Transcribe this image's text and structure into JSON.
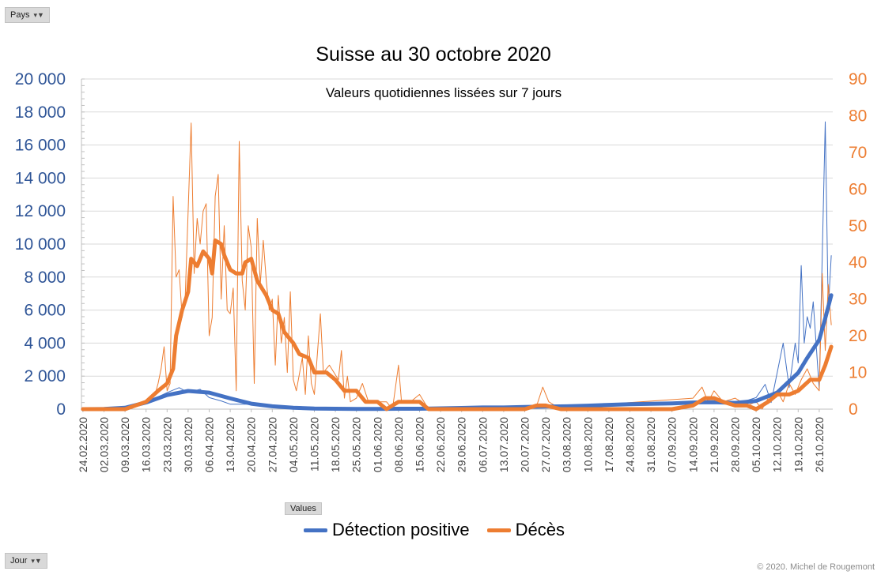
{
  "filters": {
    "country_label": "Pays",
    "day_label": "Jour",
    "values_label": "Values"
  },
  "footer": {
    "copyright": "© 2020.  Michel de Rougemont"
  },
  "colors": {
    "positive": "#4472c4",
    "deaths": "#ed7d31",
    "left_axis": "#2f5597",
    "right_axis": "#ed7d31"
  },
  "chart_data": {
    "type": "line",
    "title": "Suisse au 30 octobre 2020",
    "subtitle": "Valeurs quotidiennes lissées sur 7 jours",
    "grid": true,
    "legend_position": "bottom",
    "x_start": "2020-02-24",
    "x_tick_labels": [
      "24.02.2020",
      "02.03.2020",
      "09.03.2020",
      "16.03.2020",
      "23.03.2020",
      "30.03.2020",
      "06.04.2020",
      "13.04.2020",
      "20.04.2020",
      "27.04.2020",
      "04.05.2020",
      "11.05.2020",
      "18.05.2020",
      "25.05.2020",
      "01.06.2020",
      "08.06.2020",
      "15.06.2020",
      "22.06.2020",
      "29.06.2020",
      "06.07.2020",
      "13.07.2020",
      "20.07.2020",
      "27.07.2020",
      "03.08.2020",
      "10.08.2020",
      "17.08.2020",
      "24.08.2020",
      "31.08.2020",
      "07.09.2020",
      "14.09.2020",
      "21.09.2020",
      "28.09.2020",
      "05.10.2020",
      "12.10.2020",
      "19.10.2020",
      "26.10.2020"
    ],
    "y_left": {
      "ylim": [
        0,
        20000
      ],
      "ticks": [
        "0",
        "2 000",
        "4 000",
        "6 000",
        "8 000",
        "10 000",
        "12 000",
        "14 000",
        "16 000",
        "18 000",
        "20 000"
      ]
    },
    "y_right": {
      "ylim": [
        0,
        90
      ],
      "ticks": [
        "0",
        "10",
        "20",
        "30",
        "40",
        "50",
        "60",
        "70",
        "80",
        "90"
      ]
    },
    "series": [
      {
        "name": "Détection positive",
        "axis": "left",
        "kind": "smoothed",
        "points": [
          [
            "2020-02-24",
            0
          ],
          [
            "2020-03-02",
            10
          ],
          [
            "2020-03-09",
            80
          ],
          [
            "2020-03-16",
            400
          ],
          [
            "2020-03-23",
            850
          ],
          [
            "2020-03-30",
            1100
          ],
          [
            "2020-04-06",
            1000
          ],
          [
            "2020-04-13",
            650
          ],
          [
            "2020-04-20",
            330
          ],
          [
            "2020-04-27",
            170
          ],
          [
            "2020-05-04",
            80
          ],
          [
            "2020-05-11",
            40
          ],
          [
            "2020-05-18",
            25
          ],
          [
            "2020-05-25",
            15
          ],
          [
            "2020-06-01",
            15
          ],
          [
            "2020-06-08",
            25
          ],
          [
            "2020-06-15",
            25
          ],
          [
            "2020-06-22",
            50
          ],
          [
            "2020-06-29",
            70
          ],
          [
            "2020-07-06",
            100
          ],
          [
            "2020-07-13",
            100
          ],
          [
            "2020-07-20",
            130
          ],
          [
            "2020-07-27",
            160
          ],
          [
            "2020-08-03",
            170
          ],
          [
            "2020-08-10",
            210
          ],
          [
            "2020-08-17",
            260
          ],
          [
            "2020-08-24",
            300
          ],
          [
            "2020-08-31",
            320
          ],
          [
            "2020-09-07",
            350
          ],
          [
            "2020-09-14",
            400
          ],
          [
            "2020-09-21",
            420
          ],
          [
            "2020-09-28",
            380
          ],
          [
            "2020-10-05",
            500
          ],
          [
            "2020-10-12",
            1000
          ],
          [
            "2020-10-19",
            2200
          ],
          [
            "2020-10-22",
            3100
          ],
          [
            "2020-10-26",
            4200
          ],
          [
            "2020-10-28",
            5500
          ],
          [
            "2020-10-30",
            6900
          ]
        ]
      },
      {
        "name": "Détection positive",
        "axis": "left",
        "kind": "daily",
        "points": [
          [
            "2020-02-24",
            0
          ],
          [
            "2020-03-09",
            100
          ],
          [
            "2020-03-16",
            400
          ],
          [
            "2020-03-23",
            1000
          ],
          [
            "2020-03-27",
            1300
          ],
          [
            "2020-03-30",
            1000
          ],
          [
            "2020-04-03",
            1200
          ],
          [
            "2020-04-06",
            700
          ],
          [
            "2020-04-10",
            500
          ],
          [
            "2020-04-13",
            300
          ],
          [
            "2020-04-20",
            300
          ],
          [
            "2020-04-27",
            150
          ],
          [
            "2020-05-04",
            80
          ],
          [
            "2020-05-11",
            40
          ],
          [
            "2020-06-01",
            20
          ],
          [
            "2020-07-06",
            100
          ],
          [
            "2020-08-10",
            200
          ],
          [
            "2020-09-14",
            400
          ],
          [
            "2020-09-21",
            500
          ],
          [
            "2020-09-28",
            300
          ],
          [
            "2020-10-05",
            700
          ],
          [
            "2020-10-08",
            1500
          ],
          [
            "2020-10-10",
            400
          ],
          [
            "2020-10-12",
            2200
          ],
          [
            "2020-10-14",
            4000
          ],
          [
            "2020-10-16",
            1300
          ],
          [
            "2020-10-18",
            4000
          ],
          [
            "2020-10-19",
            2800
          ],
          [
            "2020-10-20",
            8700
          ],
          [
            "2020-10-21",
            4000
          ],
          [
            "2020-10-22",
            5600
          ],
          [
            "2020-10-23",
            4900
          ],
          [
            "2020-10-24",
            6500
          ],
          [
            "2020-10-26",
            1200
          ],
          [
            "2020-10-28",
            17400
          ],
          [
            "2020-10-29",
            6000
          ],
          [
            "2020-10-30",
            9300
          ]
        ]
      },
      {
        "name": "Décès",
        "axis": "right",
        "kind": "smoothed",
        "points": [
          [
            "2020-02-24",
            0
          ],
          [
            "2020-03-02",
            0
          ],
          [
            "2020-03-09",
            0
          ],
          [
            "2020-03-16",
            2
          ],
          [
            "2020-03-20",
            5
          ],
          [
            "2020-03-23",
            7
          ],
          [
            "2020-03-25",
            11
          ],
          [
            "2020-03-26",
            20
          ],
          [
            "2020-03-28",
            27
          ],
          [
            "2020-03-30",
            32
          ],
          [
            "2020-03-31",
            41
          ],
          [
            "2020-04-02",
            39
          ],
          [
            "2020-04-04",
            43
          ],
          [
            "2020-04-06",
            41
          ],
          [
            "2020-04-07",
            37
          ],
          [
            "2020-04-08",
            46
          ],
          [
            "2020-04-10",
            45
          ],
          [
            "2020-04-11",
            42
          ],
          [
            "2020-04-13",
            38
          ],
          [
            "2020-04-15",
            37
          ],
          [
            "2020-04-17",
            37
          ],
          [
            "2020-04-18",
            40
          ],
          [
            "2020-04-20",
            41
          ],
          [
            "2020-04-22",
            35
          ],
          [
            "2020-04-25",
            31
          ],
          [
            "2020-04-27",
            27
          ],
          [
            "2020-04-29",
            26
          ],
          [
            "2020-05-01",
            21
          ],
          [
            "2020-05-04",
            18
          ],
          [
            "2020-05-06",
            15
          ],
          [
            "2020-05-09",
            14
          ],
          [
            "2020-05-11",
            10
          ],
          [
            "2020-05-15",
            10
          ],
          [
            "2020-05-18",
            8
          ],
          [
            "2020-05-21",
            5
          ],
          [
            "2020-05-25",
            5
          ],
          [
            "2020-05-28",
            2
          ],
          [
            "2020-06-01",
            2
          ],
          [
            "2020-06-04",
            0
          ],
          [
            "2020-06-08",
            2
          ],
          [
            "2020-06-15",
            2
          ],
          [
            "2020-06-18",
            0
          ],
          [
            "2020-07-20",
            0
          ],
          [
            "2020-07-24",
            1
          ],
          [
            "2020-07-27",
            1
          ],
          [
            "2020-08-01",
            0
          ],
          [
            "2020-08-10",
            0
          ],
          [
            "2020-08-17",
            0
          ],
          [
            "2020-09-07",
            0
          ],
          [
            "2020-09-14",
            1
          ],
          [
            "2020-09-18",
            3
          ],
          [
            "2020-09-21",
            3
          ],
          [
            "2020-09-24",
            2
          ],
          [
            "2020-09-28",
            1
          ],
          [
            "2020-10-02",
            1
          ],
          [
            "2020-10-05",
            0
          ],
          [
            "2020-10-09",
            2
          ],
          [
            "2020-10-12",
            4
          ],
          [
            "2020-10-16",
            4
          ],
          [
            "2020-10-19",
            5
          ],
          [
            "2020-10-23",
            8
          ],
          [
            "2020-10-26",
            8
          ],
          [
            "2020-10-28",
            12
          ],
          [
            "2020-10-30",
            17
          ]
        ]
      },
      {
        "name": "Décès",
        "axis": "right",
        "kind": "daily",
        "points": [
          [
            "2020-02-24",
            0
          ],
          [
            "2020-03-09",
            0
          ],
          [
            "2020-03-16",
            2
          ],
          [
            "2020-03-19",
            4
          ],
          [
            "2020-03-20",
            7
          ],
          [
            "2020-03-21",
            11
          ],
          [
            "2020-03-22",
            17
          ],
          [
            "2020-03-23",
            5
          ],
          [
            "2020-03-24",
            7
          ],
          [
            "2020-03-25",
            58
          ],
          [
            "2020-03-26",
            36
          ],
          [
            "2020-03-27",
            38
          ],
          [
            "2020-03-28",
            25
          ],
          [
            "2020-03-29",
            30
          ],
          [
            "2020-03-31",
            78
          ],
          [
            "2020-04-01",
            37
          ],
          [
            "2020-04-02",
            52
          ],
          [
            "2020-04-03",
            45
          ],
          [
            "2020-04-04",
            54
          ],
          [
            "2020-04-05",
            56
          ],
          [
            "2020-04-06",
            20
          ],
          [
            "2020-04-07",
            25
          ],
          [
            "2020-04-08",
            58
          ],
          [
            "2020-04-09",
            64
          ],
          [
            "2020-04-10",
            30
          ],
          [
            "2020-04-11",
            50
          ],
          [
            "2020-04-12",
            27
          ],
          [
            "2020-04-13",
            26
          ],
          [
            "2020-04-14",
            33
          ],
          [
            "2020-04-15",
            5
          ],
          [
            "2020-04-16",
            73
          ],
          [
            "2020-04-17",
            35
          ],
          [
            "2020-04-18",
            27
          ],
          [
            "2020-04-19",
            50
          ],
          [
            "2020-04-20",
            44
          ],
          [
            "2020-04-21",
            7
          ],
          [
            "2020-04-22",
            52
          ],
          [
            "2020-04-23",
            34
          ],
          [
            "2020-04-24",
            46
          ],
          [
            "2020-04-25",
            35
          ],
          [
            "2020-04-26",
            27
          ],
          [
            "2020-04-27",
            30
          ],
          [
            "2020-04-28",
            12
          ],
          [
            "2020-04-29",
            31
          ],
          [
            "2020-04-30",
            18
          ],
          [
            "2020-05-01",
            25
          ],
          [
            "2020-05-02",
            10
          ],
          [
            "2020-05-03",
            32
          ],
          [
            "2020-05-04",
            8
          ],
          [
            "2020-05-05",
            5
          ],
          [
            "2020-05-07",
            14
          ],
          [
            "2020-05-08",
            4
          ],
          [
            "2020-05-09",
            20
          ],
          [
            "2020-05-10",
            7
          ],
          [
            "2020-05-11",
            4
          ],
          [
            "2020-05-13",
            26
          ],
          [
            "2020-05-14",
            10
          ],
          [
            "2020-05-16",
            12
          ],
          [
            "2020-05-19",
            8
          ],
          [
            "2020-05-20",
            16
          ],
          [
            "2020-05-21",
            3
          ],
          [
            "2020-05-22",
            9
          ],
          [
            "2020-05-23",
            2
          ],
          [
            "2020-05-25",
            3
          ],
          [
            "2020-05-27",
            7
          ],
          [
            "2020-05-29",
            2
          ],
          [
            "2020-06-01",
            2
          ],
          [
            "2020-06-04",
            2
          ],
          [
            "2020-06-06",
            0
          ],
          [
            "2020-06-08",
            12
          ],
          [
            "2020-06-09",
            2
          ],
          [
            "2020-06-12",
            2
          ],
          [
            "2020-06-15",
            4
          ],
          [
            "2020-06-18",
            0
          ],
          [
            "2020-07-24",
            1
          ],
          [
            "2020-07-26",
            6
          ],
          [
            "2020-07-28",
            2
          ],
          [
            "2020-08-01",
            0
          ],
          [
            "2020-08-10",
            1
          ],
          [
            "2020-09-14",
            3
          ],
          [
            "2020-09-17",
            6
          ],
          [
            "2020-09-19",
            2
          ],
          [
            "2020-09-21",
            5
          ],
          [
            "2020-09-24",
            2
          ],
          [
            "2020-09-28",
            3
          ],
          [
            "2020-10-02",
            1
          ],
          [
            "2020-10-05",
            2
          ],
          [
            "2020-10-07",
            0
          ],
          [
            "2020-10-09",
            3
          ],
          [
            "2020-10-12",
            5
          ],
          [
            "2020-10-14",
            2
          ],
          [
            "2020-10-16",
            7
          ],
          [
            "2020-10-18",
            4
          ],
          [
            "2020-10-20",
            8
          ],
          [
            "2020-10-22",
            11
          ],
          [
            "2020-10-24",
            7
          ],
          [
            "2020-10-26",
            5
          ],
          [
            "2020-10-27",
            37
          ],
          [
            "2020-10-28",
            16
          ],
          [
            "2020-10-29",
            34
          ],
          [
            "2020-10-30",
            23
          ]
        ]
      }
    ]
  }
}
